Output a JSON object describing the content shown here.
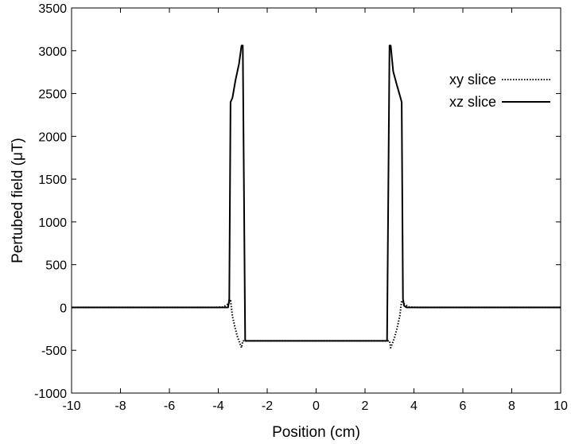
{
  "chart_data": {
    "type": "line",
    "title": "",
    "xlabel": "Position (cm)",
    "ylabel": "Pertubed field (μT)",
    "xlim": [
      -10,
      10
    ],
    "ylim": [
      -1000,
      3500
    ],
    "xticks": [
      -10,
      -8,
      -6,
      -4,
      -2,
      0,
      2,
      4,
      6,
      8,
      10
    ],
    "yticks": [
      -1000,
      -500,
      0,
      500,
      1000,
      1500,
      2000,
      2500,
      3000,
      3500
    ],
    "grid": false,
    "legend_position": "top-right",
    "series": [
      {
        "name": "xy slice",
        "style": "dotted",
        "color": "#000000",
        "x": [
          -10,
          -4.2,
          -3.8,
          -3.6,
          -3.5,
          -3.42,
          -3.32,
          -3.22,
          -3.12,
          -3.05,
          -3.0,
          3.0,
          3.05,
          3.12,
          3.22,
          3.32,
          3.42,
          3.5,
          3.6,
          3.8,
          4.2,
          10
        ],
        "y": [
          0,
          0,
          5,
          40,
          80,
          -100,
          -230,
          -340,
          -420,
          -470,
          -390,
          -390,
          -470,
          -420,
          -340,
          -230,
          -100,
          80,
          40,
          5,
          0,
          0
        ]
      },
      {
        "name": "xz slice",
        "style": "solid",
        "color": "#000000",
        "x": [
          -10,
          -3.6,
          -3.55,
          -3.5,
          -3.42,
          -3.3,
          -3.15,
          -3.05,
          -3.0,
          -2.9,
          2.9,
          3.0,
          3.05,
          3.15,
          3.3,
          3.42,
          3.5,
          3.55,
          3.6,
          3.7,
          10
        ],
        "y": [
          0,
          0,
          100,
          2400,
          2450,
          2650,
          2850,
          3060,
          3060,
          -390,
          -390,
          3060,
          3060,
          2760,
          2600,
          2480,
          2400,
          100,
          20,
          0,
          0
        ]
      }
    ]
  }
}
